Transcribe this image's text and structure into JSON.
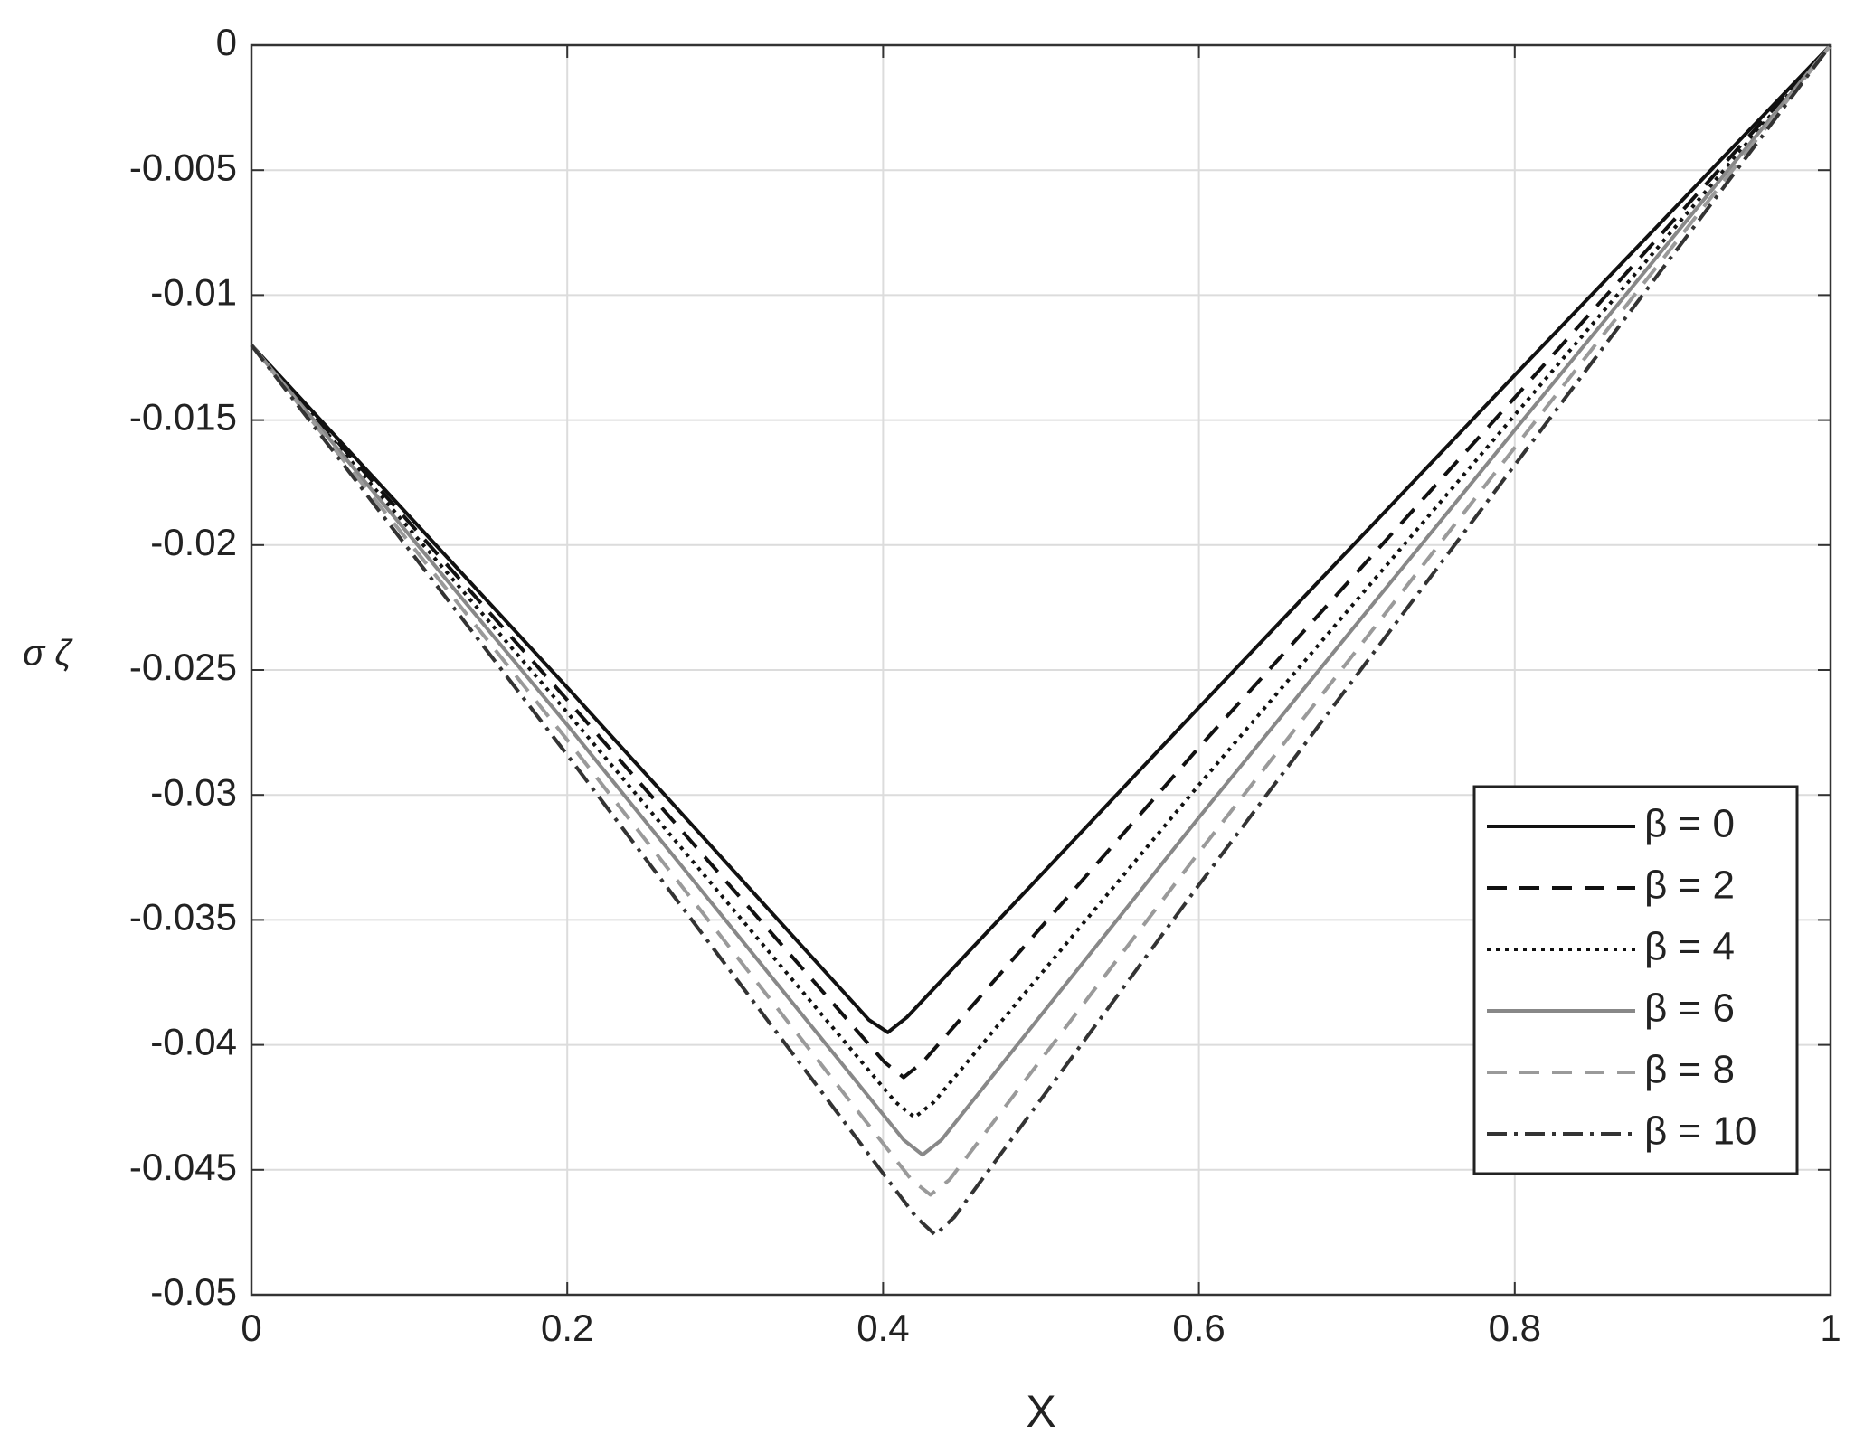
{
  "chart_data": {
    "type": "line",
    "xlabel": "X",
    "ylabel": "σ ζ",
    "xlim": [
      0,
      1
    ],
    "xticks": [
      0,
      0.2,
      0.4,
      0.6,
      0.8,
      1
    ],
    "ylim": [
      -0.05,
      0
    ],
    "yticks": [
      0,
      -0.005,
      -0.01,
      -0.015,
      -0.02,
      -0.025,
      -0.03,
      -0.035,
      -0.04,
      -0.045,
      -0.05
    ],
    "grid": true,
    "legend": "lower right",
    "series": [
      {
        "name": "β = 0",
        "color": "#111111",
        "dash": "solid",
        "x": [
          0,
          0.2,
          0.391,
          0.403,
          0.415,
          0.6,
          0.8,
          1
        ],
        "values": [
          -0.012,
          -0.0257,
          -0.039,
          -0.0395,
          -0.0389,
          -0.0265,
          -0.0132,
          0
        ]
      },
      {
        "name": "β = 2",
        "color": "#111111",
        "dash": "dashed",
        "x": [
          0,
          0.2,
          0.401,
          0.413,
          0.425,
          0.6,
          0.8,
          1
        ],
        "values": [
          -0.012,
          -0.0262,
          -0.0407,
          -0.0413,
          -0.0407,
          -0.0281,
          -0.0141,
          0
        ]
      },
      {
        "name": "β = 4",
        "color": "#111111",
        "dash": "dotted",
        "x": [
          0,
          0.2,
          0.408,
          0.42,
          0.432,
          0.6,
          0.8,
          1
        ],
        "values": [
          -0.012,
          -0.0267,
          -0.0423,
          -0.0429,
          -0.0423,
          -0.0296,
          -0.0148,
          0
        ]
      },
      {
        "name": "β = 6",
        "color": "#888888",
        "dash": "solid",
        "x": [
          0,
          0.2,
          0.413,
          0.425,
          0.437,
          0.6,
          0.8,
          1
        ],
        "values": [
          -0.012,
          -0.0272,
          -0.0438,
          -0.0444,
          -0.0438,
          -0.0309,
          -0.0154,
          0
        ]
      },
      {
        "name": "β = 8",
        "color": "#9a9a9a",
        "dash": "dashed",
        "x": [
          0,
          0.2,
          0.418,
          0.43,
          0.442,
          0.6,
          0.8,
          1
        ],
        "values": [
          -0.012,
          -0.0278,
          -0.0454,
          -0.046,
          -0.0454,
          -0.0323,
          -0.0161,
          0
        ]
      },
      {
        "name": "β = 10",
        "color": "#333333",
        "dash": "dashdot",
        "x": [
          0,
          0.2,
          0.421,
          0.433,
          0.445,
          0.6,
          0.8,
          1
        ],
        "values": [
          -0.012,
          -0.0284,
          -0.0469,
          -0.0476,
          -0.0469,
          -0.0336,
          -0.0168,
          0
        ]
      }
    ]
  }
}
